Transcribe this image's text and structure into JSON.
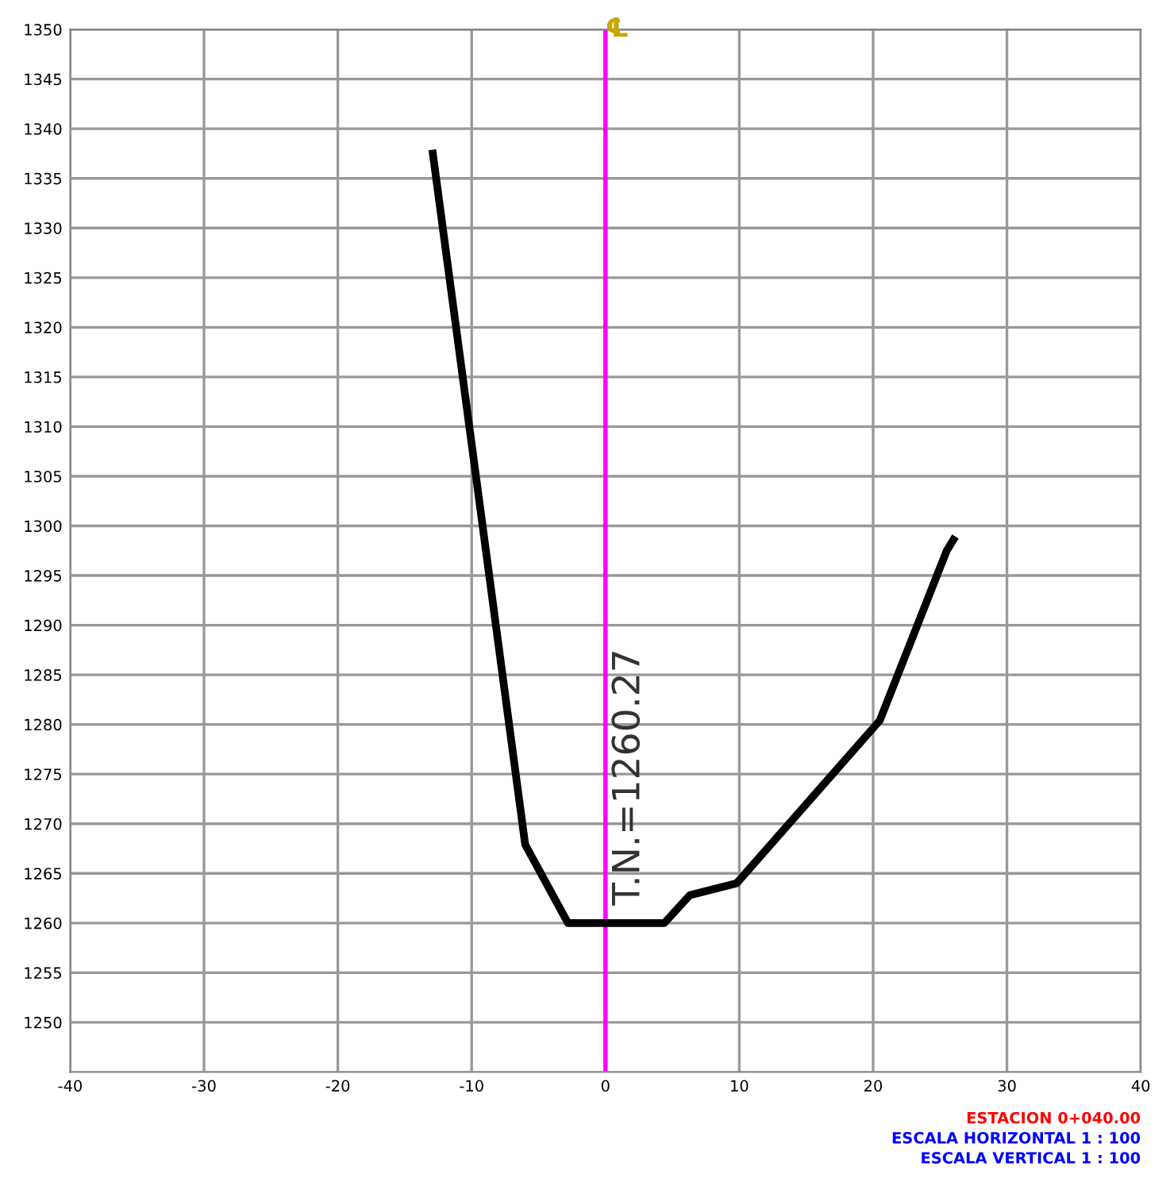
{
  "chart_data": {
    "type": "line",
    "x": [
      -12.9,
      -6.0,
      -2.8,
      4.4,
      6.3,
      9.8,
      20.5,
      25.5,
      26.0
    ],
    "series": [
      {
        "color": "#000000",
        "values": [
          1337.5,
          1267.9,
          1260.0,
          1260.0,
          1262.8,
          1264.0,
          1280.4,
          1297.5,
          1298.6
        ]
      }
    ],
    "xlim": [
      -40,
      40
    ],
    "xticks": [
      -40,
      -30,
      -20,
      -10,
      0,
      10,
      20,
      30,
      40
    ],
    "ylim": [
      1245,
      1350
    ],
    "yticks": [
      1250,
      1255,
      1260,
      1265,
      1270,
      1275,
      1280,
      1285,
      1290,
      1295,
      1300,
      1305,
      1310,
      1315,
      1320,
      1325,
      1330,
      1335,
      1340,
      1345,
      1350
    ],
    "grid": true,
    "marker": "none",
    "line_style": "solid",
    "ref_lines": [
      {
        "axis": "x",
        "value": 0,
        "label": "℄",
        "color": "#ff00ff"
      }
    ],
    "annotations": [
      {
        "text": "T.N.=1260.27",
        "x": 0,
        "y": 1260.27
      },
      "ESTACION 0+040.00",
      "ESCALA HORIZONTAL 1 : 100",
      "ESCALA VERTICAL 1 : 100"
    ]
  }
}
